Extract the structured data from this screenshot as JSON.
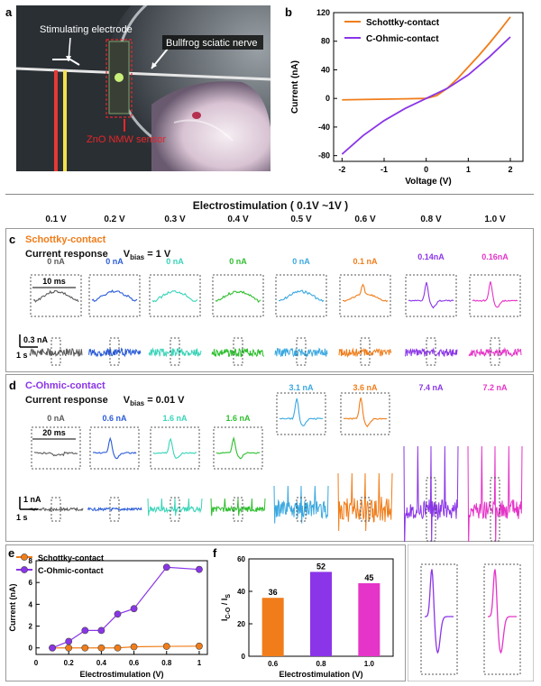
{
  "panel_labels": {
    "a": "a",
    "b": "b",
    "c": "c",
    "d": "d",
    "e": "e",
    "f": "f"
  },
  "photo": {
    "label_stim": "Stimulating electrode",
    "label_nerve": "Bullfrog sciatic nerve",
    "label_sensor": "ZnO NMW sensor",
    "colors": {
      "sensor_label": "#e8262a",
      "wire_red": "#e53935",
      "wire_yellow": "#f4e04d"
    }
  },
  "header": {
    "title": "Electrostimulation ( 0.1V ~1V )",
    "voltages": [
      "0.1 V",
      "0.2 V",
      "0.3 V",
      "0.4 V",
      "0.5 V",
      "0.6 V",
      "0.8 V",
      "1.0 V"
    ]
  },
  "series_colors": [
    "#5a5a5a",
    "#2a5bd7",
    "#39d4b8",
    "#2fbf2f",
    "#3aa8e0",
    "#f07d1a",
    "#8a35e8",
    "#e534c8"
  ],
  "panel_c": {
    "title": "Schottky-contact",
    "title_color": "#f07d1a",
    "response_label": "Current response",
    "vbias_label": "V",
    "vbias_sub": "bias",
    "vbias_value": "= 1 V",
    "values": [
      "0 nA",
      "0 nA",
      "0 nA",
      "0 nA",
      "0 nA",
      "0.1 nA",
      "0.14nA",
      "0.16nA"
    ],
    "scale_time": "10 ms",
    "scale_current": "0.3 nA",
    "scale_sec": "1 s"
  },
  "panel_d": {
    "title": "C-Ohmic-contact",
    "title_color": "#8a35e8",
    "response_label": "Current response",
    "vbias_label": "V",
    "vbias_sub": "bias",
    "vbias_value": "= 0.01 V",
    "values": [
      "0 nA",
      "0.6 nA",
      "1.6 nA",
      "1.6 nA",
      "3.1 nA",
      "3.6 nA",
      "7.4 nA",
      "7.2 nA"
    ],
    "scale_time": "20 ms",
    "scale_current": "1 nA",
    "scale_sec": "1 s"
  },
  "chart_data": [
    {
      "id": "b",
      "type": "line",
      "title": "",
      "xlabel": "Voltage (V)",
      "ylabel": "Current (nA)",
      "xlim": [
        -2.2,
        2.3
      ],
      "ylim": [
        -88,
        120
      ],
      "xticks": [
        -2,
        -1,
        0,
        1,
        2
      ],
      "yticks": [
        -80,
        -40,
        0,
        40,
        80,
        120
      ],
      "legend_position": "top-left",
      "series": [
        {
          "name": "Schottky-contact",
          "color": "#f07d1a",
          "x": [
            -2,
            -1.5,
            -1,
            -0.5,
            0,
            0.25,
            0.5,
            0.75,
            1,
            1.25,
            1.5,
            1.75,
            2
          ],
          "y": [
            -2,
            -1.5,
            -1,
            -0.5,
            0,
            4,
            14,
            28,
            44,
            60,
            77,
            95,
            114
          ]
        },
        {
          "name": "C-Ohmic-contact",
          "color": "#8a35e8",
          "x": [
            -2,
            -1.5,
            -1,
            -0.5,
            0,
            0.5,
            1,
            1.5,
            2
          ],
          "y": [
            -78,
            -52,
            -31,
            -14,
            0,
            14,
            33,
            58,
            86
          ]
        }
      ]
    },
    {
      "id": "e",
      "type": "line",
      "title": "",
      "xlabel": "Electrostimulation (V)",
      "ylabel": "Current (nA)",
      "xlim": [
        0,
        1.05
      ],
      "ylim": [
        -0.6,
        8
      ],
      "xticks": [
        0,
        0.2,
        0.4,
        0.6,
        0.8,
        1
      ],
      "yticks": [
        0,
        2,
        4,
        6,
        8
      ],
      "legend_position": "top-left",
      "series": [
        {
          "name": "Schottky-contact",
          "color": "#f07d1a",
          "x": [
            0.1,
            0.2,
            0.3,
            0.4,
            0.5,
            0.6,
            0.8,
            1.0
          ],
          "y": [
            0,
            0,
            0,
            0,
            0,
            0.1,
            0.14,
            0.16
          ]
        },
        {
          "name": "C-Ohmic-contact",
          "color": "#8a35e8",
          "x": [
            0.1,
            0.2,
            0.3,
            0.4,
            0.5,
            0.6,
            0.8,
            1.0
          ],
          "y": [
            0,
            0.6,
            1.6,
            1.6,
            3.1,
            3.6,
            7.4,
            7.2
          ]
        }
      ]
    },
    {
      "id": "f",
      "type": "bar",
      "title": "",
      "xlabel": "Electrostimulation (V)",
      "ylabel": "I",
      "ylabel_sub": "C-O",
      "ylabel_rest": " / I",
      "ylabel_sub2": "S",
      "categories": [
        "0.6",
        "0.8",
        "1.0"
      ],
      "values": [
        36,
        52,
        45
      ],
      "data_labels": [
        "36",
        "52",
        "45"
      ],
      "colors": [
        "#f07d1a",
        "#8a35e8",
        "#e534c8"
      ],
      "ylim": [
        0,
        60
      ],
      "yticks": [
        0,
        20,
        40,
        60
      ]
    }
  ]
}
